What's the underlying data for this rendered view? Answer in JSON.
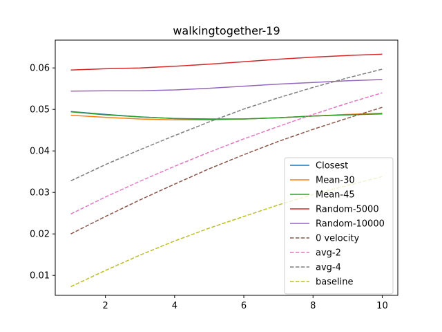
{
  "chart_data": {
    "type": "line",
    "title": "walkingtogether-19",
    "xlabel": "",
    "ylabel": "",
    "xlim": [
      0.55,
      10.45
    ],
    "ylim": [
      0.0052,
      0.0667
    ],
    "x_ticks": [
      2,
      4,
      6,
      8,
      10
    ],
    "y_ticks": [
      0.01,
      0.02,
      0.03,
      0.04,
      0.05,
      0.06
    ],
    "grid": false,
    "legend_position": "lower-right",
    "x": [
      1,
      2,
      3,
      4,
      5,
      6,
      7,
      8,
      9,
      10
    ],
    "series": [
      {
        "name": "Closest",
        "color": "#1f77b4",
        "dash": "solid",
        "values": [
          0.0495,
          0.0488,
          0.0482,
          0.0478,
          0.0477,
          0.0477,
          0.048,
          0.0484,
          0.0487,
          0.049
        ]
      },
      {
        "name": "Mean-30",
        "color": "#ff7f0e",
        "dash": "solid",
        "values": [
          0.0486,
          0.0481,
          0.0477,
          0.0475,
          0.0475,
          0.0477,
          0.048,
          0.0484,
          0.0488,
          0.0491
        ]
      },
      {
        "name": "Mean-45",
        "color": "#2ca02c",
        "dash": "solid",
        "values": [
          0.0494,
          0.0487,
          0.0482,
          0.0478,
          0.0476,
          0.0477,
          0.048,
          0.0484,
          0.0487,
          0.0489
        ]
      },
      {
        "name": "Random-5000",
        "color": "#d62728",
        "dash": "solid",
        "values": [
          0.0595,
          0.0598,
          0.06,
          0.0604,
          0.0609,
          0.0615,
          0.0621,
          0.0626,
          0.063,
          0.0633
        ]
      },
      {
        "name": "Random-10000",
        "color": "#9467bd",
        "dash": "solid",
        "values": [
          0.0544,
          0.0545,
          0.0545,
          0.0547,
          0.0551,
          0.0556,
          0.0561,
          0.0565,
          0.0569,
          0.0572
        ]
      },
      {
        "name": "0 velocity",
        "color": "#8c564b",
        "dash": "dashed",
        "values": [
          0.02,
          0.0242,
          0.0282,
          0.032,
          0.0357,
          0.0391,
          0.0423,
          0.0452,
          0.0479,
          0.0505
        ]
      },
      {
        "name": "avg-2",
        "color": "#e377c2",
        "dash": "dashed",
        "values": [
          0.0248,
          0.0289,
          0.0327,
          0.0363,
          0.0397,
          0.0429,
          0.0459,
          0.0488,
          0.0515,
          0.054
        ]
      },
      {
        "name": "avg-4",
        "color": "#7f7f7f",
        "dash": "dashed",
        "values": [
          0.0328,
          0.0367,
          0.0403,
          0.0437,
          0.047,
          0.0501,
          0.0528,
          0.0553,
          0.0576,
          0.0597
        ]
      },
      {
        "name": "baseline",
        "color": "#bcbd22",
        "dash": "dashed",
        "values": [
          0.0073,
          0.0112,
          0.0149,
          0.0183,
          0.0214,
          0.0242,
          0.027,
          0.0295,
          0.0317,
          0.0338
        ]
      }
    ]
  }
}
